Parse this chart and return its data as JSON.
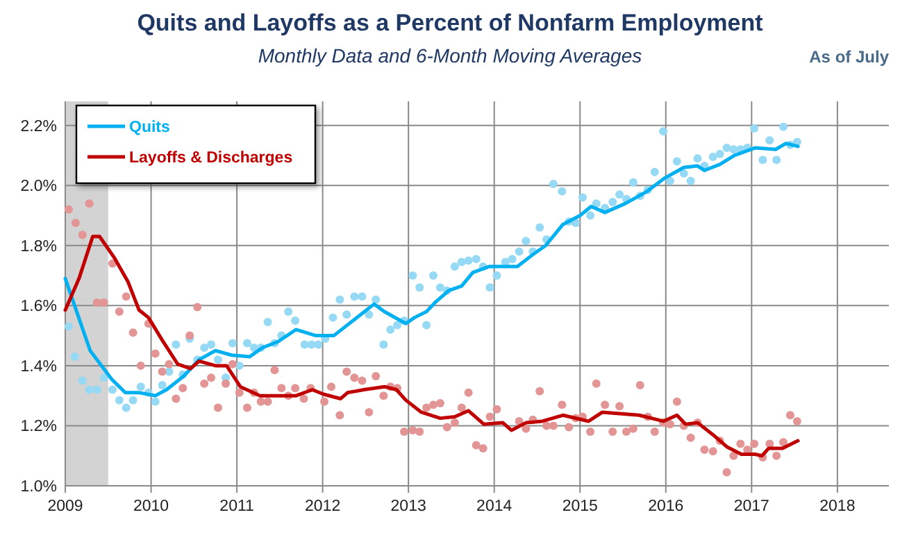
{
  "chart_data": {
    "type": "line",
    "title": "Quits and Layoffs as a Percent of Nonfarm Employment",
    "subtitle": "Monthly Data and 6-Month Moving Averages",
    "annotations": [
      "As of July"
    ],
    "xlim": [
      2009,
      2018.6
    ],
    "xticks": [
      2009,
      2010,
      2011,
      2012,
      2013,
      2014,
      2015,
      2016,
      2017,
      2018
    ],
    "ylim": [
      1.0,
      2.28
    ],
    "yticks": [
      {
        "value": 1.0,
        "label": "1.0%"
      },
      {
        "value": 1.2,
        "label": "1.2%"
      },
      {
        "value": 1.4,
        "label": "1.4%"
      },
      {
        "value": 1.6,
        "label": "1.6%"
      },
      {
        "value": 1.8,
        "label": "1.8%"
      },
      {
        "value": 2.0,
        "label": "2.0%"
      },
      {
        "value": 2.2,
        "label": "2.2%"
      }
    ],
    "grid": true,
    "legend": "top left",
    "bands": [
      {
        "axis": "x",
        "from": 2009,
        "to": 2009.5,
        "color": "#d3d3d3"
      }
    ],
    "series": [
      {
        "type": "scatter",
        "color": "#95d9f5",
        "x": [
          2009.04,
          2009.11,
          2009.2,
          2009.28,
          2009.37,
          2009.45,
          2009.55,
          2009.63,
          2009.71,
          2009.79,
          2009.88,
          2009.97,
          2010.05,
          2010.13,
          2010.21,
          2010.29,
          2010.37,
          2010.45,
          2010.54,
          2010.62,
          2010.7,
          2010.78,
          2010.87,
          2010.95,
          2011.03,
          2011.12,
          2011.2,
          2011.28,
          2011.36,
          2011.44,
          2011.52,
          2011.6,
          2011.68,
          2011.79,
          2011.87,
          2011.95,
          2012.03,
          2012.12,
          2012.2,
          2012.28,
          2012.37,
          2012.46,
          2012.54,
          2012.62,
          2012.71,
          2012.79,
          2012.87,
          2012.95,
          2013.05,
          2013.13,
          2013.21,
          2013.29,
          2013.37,
          2013.45,
          2013.54,
          2013.62,
          2013.7,
          2013.79,
          2013.87,
          2013.95,
          2014.03,
          2014.13,
          2014.21,
          2014.29,
          2014.37,
          2014.45,
          2014.53,
          2014.61,
          2014.69,
          2014.79,
          2014.87,
          2014.95,
          2015.03,
          2015.12,
          2015.19,
          2015.29,
          2015.38,
          2015.46,
          2015.54,
          2015.62,
          2015.7,
          2015.79,
          2015.87,
          2015.97,
          2016.05,
          2016.13,
          2016.21,
          2016.29,
          2016.37,
          2016.45,
          2016.55,
          2016.63,
          2016.71,
          2016.79,
          2016.87,
          2016.95,
          2017.03,
          2017.13,
          2017.21,
          2017.29,
          2017.37,
          2017.45,
          2017.53
        ],
        "values": [
          1.53,
          1.43,
          1.35,
          1.32,
          1.32,
          1.36,
          1.32,
          1.285,
          1.26,
          1.285,
          1.33,
          1.31,
          1.28,
          1.335,
          1.38,
          1.47,
          1.37,
          1.49,
          1.42,
          1.46,
          1.47,
          1.42,
          1.36,
          1.475,
          1.4,
          1.475,
          1.46,
          1.46,
          1.545,
          1.475,
          1.5,
          1.58,
          1.55,
          1.47,
          1.47,
          1.47,
          1.49,
          1.56,
          1.62,
          1.57,
          1.63,
          1.63,
          1.57,
          1.62,
          1.47,
          1.52,
          1.535,
          1.55,
          1.7,
          1.66,
          1.535,
          1.7,
          1.66,
          1.65,
          1.73,
          1.745,
          1.75,
          1.755,
          1.73,
          1.66,
          1.7,
          1.745,
          1.755,
          1.78,
          1.815,
          1.78,
          1.86,
          1.82,
          2.005,
          1.98,
          1.88,
          1.875,
          1.96,
          1.9,
          1.94,
          1.925,
          1.945,
          1.97,
          1.955,
          2.01,
          1.965,
          1.985,
          2.045,
          2.18,
          2.015,
          2.08,
          2.04,
          2.015,
          2.09,
          2.065,
          2.095,
          2.105,
          2.125,
          2.12,
          2.12,
          2.125,
          2.19,
          2.085,
          2.15,
          2.085,
          2.195,
          2.135,
          2.145
        ]
      },
      {
        "type": "scatter",
        "color": "#e39494",
        "x": [
          2009.04,
          2009.12,
          2009.2,
          2009.28,
          2009.37,
          2009.45,
          2009.55,
          2009.63,
          2009.71,
          2009.79,
          2009.88,
          2009.97,
          2010.05,
          2010.13,
          2010.21,
          2010.29,
          2010.37,
          2010.45,
          2010.54,
          2010.62,
          2010.7,
          2010.78,
          2010.87,
          2010.95,
          2011.03,
          2011.12,
          2011.2,
          2011.28,
          2011.36,
          2011.44,
          2011.52,
          2011.6,
          2011.68,
          2011.78,
          2011.86,
          2012.02,
          2012.1,
          2012.2,
          2012.28,
          2012.37,
          2012.46,
          2012.54,
          2012.62,
          2012.71,
          2012.79,
          2012.87,
          2012.95,
          2013.05,
          2013.13,
          2013.21,
          2013.29,
          2013.37,
          2013.45,
          2013.54,
          2013.62,
          2013.7,
          2013.79,
          2013.87,
          2013.95,
          2014.03,
          2014.29,
          2014.37,
          2014.45,
          2014.53,
          2014.61,
          2014.69,
          2014.79,
          2014.87,
          2014.95,
          2015.03,
          2015.12,
          2015.19,
          2015.29,
          2015.38,
          2015.46,
          2015.54,
          2015.62,
          2015.7,
          2015.79,
          2015.87,
          2015.97,
          2016.05,
          2016.13,
          2016.21,
          2016.29,
          2016.37,
          2016.45,
          2016.55,
          2016.63,
          2016.71,
          2016.79,
          2016.87,
          2016.95,
          2017.03,
          2017.13,
          2017.21,
          2017.29,
          2017.37,
          2017.45,
          2017.53
        ],
        "values": [
          1.92,
          1.875,
          1.835,
          1.94,
          1.61,
          1.61,
          1.74,
          1.58,
          1.63,
          1.51,
          1.4,
          1.54,
          1.44,
          1.38,
          1.405,
          1.29,
          1.325,
          1.5,
          1.595,
          1.34,
          1.36,
          1.26,
          1.34,
          1.405,
          1.31,
          1.26,
          1.31,
          1.28,
          1.28,
          1.385,
          1.325,
          1.3,
          1.325,
          1.29,
          1.325,
          1.28,
          1.33,
          1.235,
          1.38,
          1.36,
          1.35,
          1.245,
          1.365,
          1.3,
          1.33,
          1.325,
          1.18,
          1.185,
          1.18,
          1.26,
          1.27,
          1.275,
          1.195,
          1.21,
          1.26,
          1.31,
          1.135,
          1.125,
          1.23,
          1.255,
          1.215,
          1.19,
          1.22,
          1.315,
          1.2,
          1.2,
          1.27,
          1.195,
          1.225,
          1.23,
          1.18,
          1.34,
          1.27,
          1.18,
          1.265,
          1.18,
          1.19,
          1.335,
          1.23,
          1.18,
          1.21,
          1.205,
          1.28,
          1.2,
          1.16,
          1.21,
          1.12,
          1.115,
          1.15,
          1.045,
          1.1,
          1.14,
          1.12,
          1.14,
          1.095,
          1.14,
          1.1,
          1.145,
          1.235,
          1.215
        ]
      },
      {
        "name": "Quits",
        "color": "#00b0f0",
        "x": [
          2009.0,
          2009.29,
          2009.54,
          2009.7,
          2009.86,
          2010.05,
          2010.18,
          2010.38,
          2010.56,
          2010.75,
          2010.94,
          2011.15,
          2011.3,
          2011.48,
          2011.69,
          2011.92,
          2012.13,
          2012.6,
          2012.72,
          2012.97,
          2013.07,
          2013.21,
          2013.31,
          2013.47,
          2013.62,
          2013.75,
          2013.94,
          2014.27,
          2014.45,
          2014.6,
          2014.8,
          2015.0,
          2015.13,
          2015.29,
          2015.53,
          2015.78,
          2015.99,
          2016.21,
          2016.37,
          2016.45,
          2016.63,
          2016.8,
          2017.04,
          2017.28,
          2017.4,
          2017.54
        ],
        "values": [
          1.69,
          1.45,
          1.355,
          1.31,
          1.31,
          1.3,
          1.32,
          1.365,
          1.42,
          1.45,
          1.435,
          1.43,
          1.46,
          1.48,
          1.52,
          1.5,
          1.5,
          1.605,
          1.58,
          1.54,
          1.56,
          1.58,
          1.61,
          1.65,
          1.665,
          1.71,
          1.73,
          1.73,
          1.77,
          1.8,
          1.87,
          1.9,
          1.93,
          1.91,
          1.94,
          1.98,
          2.025,
          2.06,
          2.065,
          2.05,
          2.07,
          2.1,
          2.125,
          2.12,
          2.14,
          2.13
        ]
      },
      {
        "name": "Layoffs & Discharges",
        "color": "#c00000",
        "x": [
          2009.0,
          2009.16,
          2009.32,
          2009.4,
          2009.57,
          2009.73,
          2009.86,
          2009.97,
          2010.13,
          2010.31,
          2010.46,
          2010.56,
          2010.75,
          2010.88,
          2011.04,
          2011.27,
          2011.43,
          2011.69,
          2011.88,
          2012.01,
          2012.21,
          2012.29,
          2012.48,
          2012.72,
          2012.86,
          2012.97,
          2013.15,
          2013.37,
          2013.54,
          2013.7,
          2013.88,
          2014.1,
          2014.2,
          2014.37,
          2014.56,
          2014.8,
          2015.1,
          2015.26,
          2015.69,
          2015.97,
          2016.13,
          2016.23,
          2016.37,
          2016.55,
          2016.71,
          2016.88,
          2017.04,
          2017.12,
          2017.2,
          2017.36,
          2017.54
        ],
        "values": [
          1.585,
          1.69,
          1.83,
          1.83,
          1.76,
          1.68,
          1.585,
          1.56,
          1.485,
          1.405,
          1.39,
          1.415,
          1.4,
          1.4,
          1.33,
          1.3,
          1.3,
          1.3,
          1.32,
          1.305,
          1.29,
          1.31,
          1.32,
          1.33,
          1.32,
          1.285,
          1.245,
          1.225,
          1.23,
          1.25,
          1.205,
          1.21,
          1.185,
          1.21,
          1.215,
          1.235,
          1.215,
          1.245,
          1.235,
          1.215,
          1.235,
          1.205,
          1.21,
          1.17,
          1.13,
          1.105,
          1.105,
          1.1,
          1.125,
          1.125,
          1.15
        ]
      }
    ]
  }
}
